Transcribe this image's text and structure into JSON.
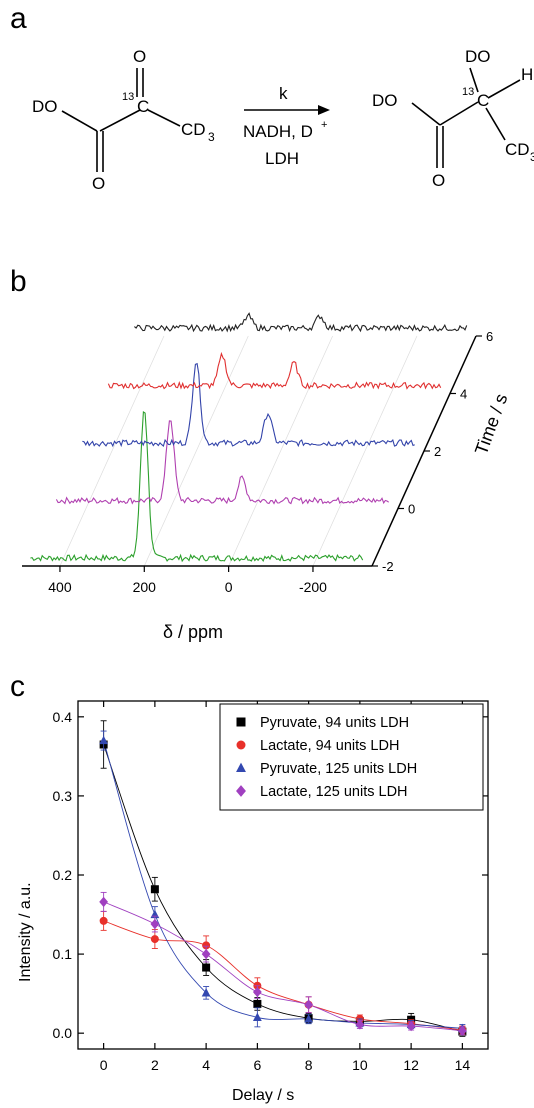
{
  "panels": {
    "a": "a",
    "b": "b",
    "c": "c"
  },
  "scheme": {
    "reactant": {
      "do": "DO",
      "o_top": "O",
      "o_bottom": "O",
      "label13": "13",
      "c": "C",
      "cd3": "CD",
      "cd3_sub": "3"
    },
    "arrow": {
      "k": "k",
      "nadh": "NADH, D",
      "nadh_sup": "+",
      "ldh": "LDH"
    },
    "product": {
      "do_top": "DO",
      "do_left": "DO",
      "label13": "13",
      "c": "C",
      "h": "H",
      "cd3": "CD",
      "cd3_sub": "3",
      "o_bottom": "O"
    }
  },
  "spectra_panel": {
    "x_axis_label": "δ / ppm",
    "time_axis_label": "Time / s",
    "x_ticks": [
      "400",
      "200",
      "0",
      "-200"
    ],
    "time_ticks": [
      "6",
      "4",
      "2",
      "0",
      "-2"
    ],
    "traces": [
      {
        "time": -2,
        "color": "#2ca02c",
        "peaks": [
          {
            "ppm": 200,
            "h": 1.0
          }
        ]
      },
      {
        "time": 0,
        "color": "#b040b0",
        "peaks": [
          {
            "ppm": 200,
            "h": 0.55
          },
          {
            "ppm": 30,
            "h": 0.15
          }
        ]
      },
      {
        "time": 2,
        "color": "#3344aa",
        "peaks": [
          {
            "ppm": 200,
            "h": 0.55
          },
          {
            "ppm": 30,
            "h": 0.2
          }
        ]
      },
      {
        "time": 4,
        "color": "#e03030",
        "peaks": [
          {
            "ppm": 200,
            "h": 0.2
          },
          {
            "ppm": 30,
            "h": 0.15
          }
        ]
      },
      {
        "time": 6,
        "color": "#222222",
        "peaks": [
          {
            "ppm": 200,
            "h": 0.08
          },
          {
            "ppm": 30,
            "h": 0.08
          }
        ]
      }
    ]
  },
  "chart_data": {
    "type": "scatter",
    "xlabel": "Delay / s",
    "ylabel": "Intensity / a.u.",
    "xlim": [
      -1,
      15
    ],
    "ylim": [
      -0.02,
      0.42
    ],
    "x_ticks": [
      0,
      2,
      4,
      6,
      8,
      10,
      12,
      14
    ],
    "y_ticks": [
      0.0,
      0.1,
      0.2,
      0.3,
      0.4
    ],
    "y_tick_labels": [
      "0.0",
      "0.1",
      "0.2",
      "0.3",
      "0.4"
    ],
    "legend_position": "top-right",
    "series": [
      {
        "name": "Pyruvate, 94 units LDH",
        "marker": "square",
        "color": "#000000",
        "x": [
          0,
          2,
          4,
          6,
          8,
          10,
          12,
          14
        ],
        "y": [
          0.365,
          0.182,
          0.083,
          0.037,
          0.019,
          0.015,
          0.017,
          0.002
        ],
        "err": [
          0.03,
          0.015,
          0.01,
          0.008,
          0.006,
          0.005,
          0.008,
          0.006
        ]
      },
      {
        "name": "Lactate, 94 units LDH",
        "marker": "circle",
        "color": "#e8302a",
        "x": [
          0,
          2,
          4,
          6,
          8,
          10,
          12,
          14
        ],
        "y": [
          0.142,
          0.119,
          0.111,
          0.06,
          0.036,
          0.018,
          0.012,
          0.004
        ],
        "err": [
          0.012,
          0.012,
          0.012,
          0.01,
          0.01,
          0.005,
          0.005,
          0.005
        ]
      },
      {
        "name": "Pyruvate, 125 units LDH",
        "marker": "triangle",
        "color": "#3348b0",
        "x": [
          0,
          2,
          4,
          6,
          8,
          10,
          12,
          14
        ],
        "y": [
          0.37,
          0.15,
          0.051,
          0.02,
          0.018,
          0.013,
          0.011,
          0.006
        ],
        "err": [
          0.012,
          0.01,
          0.008,
          0.012,
          0.006,
          0.005,
          0.005,
          0.005
        ]
      },
      {
        "name": "Lactate, 125 units LDH",
        "marker": "diamond",
        "color": "#a040c0",
        "x": [
          0,
          2,
          4,
          6,
          8,
          10,
          12,
          14
        ],
        "y": [
          0.166,
          0.138,
          0.1,
          0.052,
          0.036,
          0.011,
          0.009,
          0.003
        ],
        "err": [
          0.012,
          0.01,
          0.01,
          0.008,
          0.01,
          0.005,
          0.005,
          0.005
        ]
      }
    ]
  }
}
